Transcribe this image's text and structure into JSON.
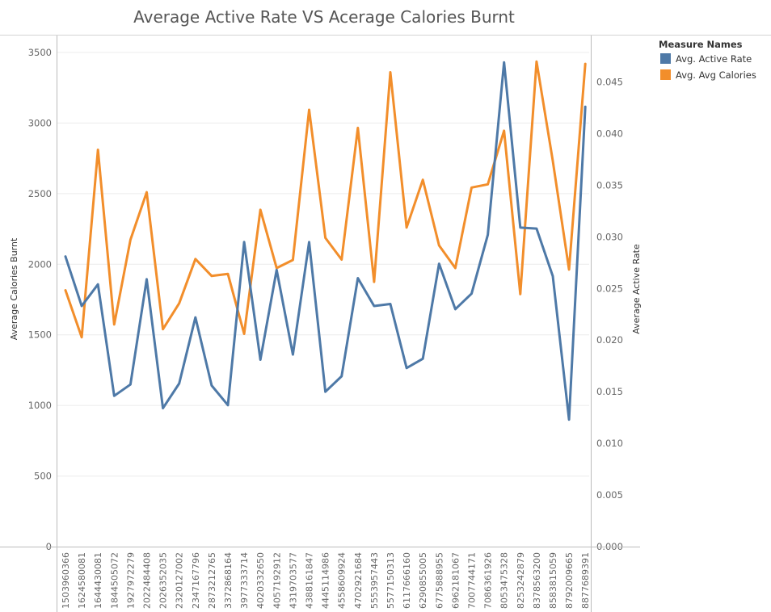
{
  "chart_data": {
    "type": "line",
    "title": "Average Active Rate VS Acerage Calories Burnt",
    "xlabel": "",
    "categories": [
      "1503960366",
      "1624580081",
      "1644430081",
      "1844505072",
      "1927972279",
      "2022484408",
      "2026352035",
      "2320127002",
      "2347167796",
      "2873212765",
      "3372868164",
      "3977333714",
      "4020332650",
      "4057192912",
      "4319703577",
      "4388161847",
      "4445114986",
      "4558609924",
      "4702921684",
      "5553957443",
      "5577150313",
      "6117666160",
      "6290855005",
      "6775888955",
      "6962181067",
      "7007744171",
      "7086361926",
      "8053475328",
      "8253242879",
      "8378563200",
      "8583815059",
      "8792009665",
      "8877689391"
    ],
    "left_axis": {
      "label": "Average Calories Burnt",
      "ylim": [
        0,
        3620
      ],
      "ticks": [
        0,
        500,
        1000,
        1500,
        2000,
        2500,
        3000,
        3500
      ]
    },
    "right_axis": {
      "label": "Average Active Rate",
      "ylim": [
        0,
        0.0495
      ],
      "ticks": [
        "0.000",
        "0.005",
        "0.010",
        "0.015",
        "0.020",
        "0.025",
        "0.030",
        "0.035",
        "0.040",
        "0.045"
      ]
    },
    "grid": true,
    "legend_position": "top-right",
    "legend_title": "Measure Names",
    "series": [
      {
        "name": "Avg. Active Rate",
        "axis": "right",
        "color": "#4e79a7",
        "values": [
          0.0281,
          0.0233,
          0.0254,
          0.0146,
          0.0157,
          0.0259,
          0.0134,
          0.0158,
          0.0222,
          0.0156,
          0.0137,
          0.0295,
          0.0181,
          0.0268,
          0.0186,
          0.0295,
          0.015,
          0.0165,
          0.026,
          0.0233,
          0.0235,
          0.0173,
          0.0182,
          0.0274,
          0.023,
          0.0245,
          0.0302,
          0.0469,
          0.0309,
          0.0308,
          0.0262,
          0.0123,
          0.0426
        ]
      },
      {
        "name": "Avg. Avg Calories",
        "axis": "left",
        "color": "#f28e2b",
        "values": [
          1816,
          1483,
          2811,
          1573,
          2173,
          2510,
          1540,
          1723,
          2037,
          1917,
          1931,
          1507,
          2386,
          1973,
          2030,
          3094,
          2187,
          2033,
          2966,
          1875,
          3360,
          2260,
          2598,
          2133,
          1973,
          2543,
          2566,
          2946,
          1788,
          3436,
          2732,
          1962,
          3419
        ]
      }
    ]
  }
}
